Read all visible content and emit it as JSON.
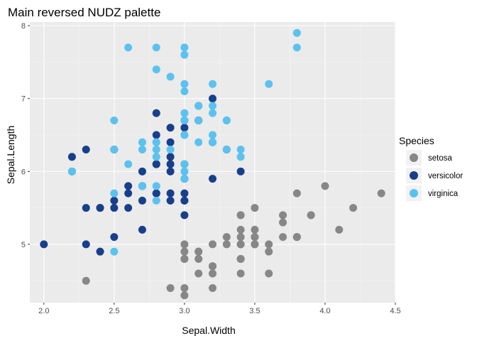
{
  "chart_data": {
    "type": "scatter",
    "title": "Main reversed NUDZ palette",
    "xlabel": "Sepal.Width",
    "ylabel": "Sepal.Length",
    "xlim": [
      1.9,
      4.5
    ],
    "ylim": [
      4.2,
      8.05
    ],
    "xticks": [
      "2.0",
      "2.5",
      "3.0",
      "3.5",
      "4.0",
      "4.5"
    ],
    "yticks": [
      "5",
      "6",
      "7",
      "8"
    ],
    "grid": true,
    "background": "#ebebeb",
    "legend": {
      "title": "Species",
      "position": "right"
    },
    "series": [
      {
        "name": "setosa",
        "color": "#878787",
        "points": [
          [
            3.5,
            5.1
          ],
          [
            3.0,
            4.9
          ],
          [
            3.2,
            4.7
          ],
          [
            3.1,
            4.6
          ],
          [
            3.6,
            5.0
          ],
          [
            3.9,
            5.4
          ],
          [
            3.4,
            4.6
          ],
          [
            3.4,
            5.0
          ],
          [
            2.9,
            4.4
          ],
          [
            3.1,
            4.9
          ],
          [
            3.7,
            5.4
          ],
          [
            3.4,
            4.8
          ],
          [
            3.0,
            4.8
          ],
          [
            3.0,
            4.3
          ],
          [
            4.0,
            5.8
          ],
          [
            4.4,
            5.7
          ],
          [
            3.9,
            5.4
          ],
          [
            3.5,
            5.1
          ],
          [
            3.8,
            5.7
          ],
          [
            3.8,
            5.1
          ],
          [
            3.4,
            5.4
          ],
          [
            3.7,
            5.1
          ],
          [
            3.6,
            4.6
          ],
          [
            3.3,
            5.1
          ],
          [
            3.4,
            4.8
          ],
          [
            3.0,
            5.0
          ],
          [
            3.4,
            5.0
          ],
          [
            3.5,
            5.2
          ],
          [
            3.4,
            5.2
          ],
          [
            3.2,
            4.7
          ],
          [
            3.1,
            4.8
          ],
          [
            3.4,
            5.4
          ],
          [
            4.1,
            5.2
          ],
          [
            4.2,
            5.5
          ],
          [
            3.1,
            4.9
          ],
          [
            3.2,
            5.0
          ],
          [
            3.5,
            5.5
          ],
          [
            3.6,
            4.9
          ],
          [
            3.0,
            4.4
          ],
          [
            3.4,
            5.1
          ],
          [
            3.5,
            5.0
          ],
          [
            2.3,
            4.5
          ],
          [
            3.2,
            4.4
          ],
          [
            3.5,
            5.0
          ],
          [
            3.8,
            5.1
          ],
          [
            3.0,
            4.8
          ],
          [
            3.8,
            5.1
          ],
          [
            3.2,
            4.6
          ],
          [
            3.7,
            5.3
          ],
          [
            3.3,
            5.0
          ]
        ]
      },
      {
        "name": "versicolor",
        "color": "#173f8b",
        "points": [
          [
            3.2,
            7.0
          ],
          [
            3.2,
            6.4
          ],
          [
            3.1,
            6.9
          ],
          [
            2.3,
            5.5
          ],
          [
            2.8,
            6.5
          ],
          [
            2.8,
            5.7
          ],
          [
            3.3,
            6.3
          ],
          [
            2.4,
            4.9
          ],
          [
            2.9,
            6.6
          ],
          [
            2.7,
            5.2
          ],
          [
            2.0,
            5.0
          ],
          [
            3.0,
            5.9
          ],
          [
            2.2,
            6.0
          ],
          [
            2.9,
            6.1
          ],
          [
            2.9,
            5.6
          ],
          [
            3.1,
            6.7
          ],
          [
            3.0,
            5.6
          ],
          [
            2.7,
            5.8
          ],
          [
            2.2,
            6.2
          ],
          [
            2.5,
            5.6
          ],
          [
            3.2,
            5.9
          ],
          [
            2.8,
            6.1
          ],
          [
            2.5,
            6.3
          ],
          [
            2.8,
            6.1
          ],
          [
            2.9,
            6.4
          ],
          [
            3.0,
            6.6
          ],
          [
            2.8,
            6.8
          ],
          [
            3.0,
            6.7
          ],
          [
            2.9,
            6.0
          ],
          [
            2.6,
            5.7
          ],
          [
            2.4,
            5.5
          ],
          [
            2.4,
            5.5
          ],
          [
            2.7,
            5.8
          ],
          [
            2.7,
            6.0
          ],
          [
            3.0,
            5.4
          ],
          [
            3.4,
            6.0
          ],
          [
            3.1,
            6.7
          ],
          [
            2.3,
            6.3
          ],
          [
            3.0,
            5.6
          ],
          [
            2.5,
            5.5
          ],
          [
            2.6,
            5.5
          ],
          [
            3.0,
            6.1
          ],
          [
            2.6,
            5.8
          ],
          [
            2.3,
            5.0
          ],
          [
            2.7,
            5.6
          ],
          [
            3.0,
            5.7
          ],
          [
            2.9,
            5.7
          ],
          [
            2.9,
            6.2
          ],
          [
            2.5,
            5.1
          ],
          [
            2.8,
            5.7
          ]
        ]
      },
      {
        "name": "virginica",
        "color": "#5bc2f0",
        "points": [
          [
            3.3,
            6.3
          ],
          [
            2.7,
            5.8
          ],
          [
            3.0,
            7.1
          ],
          [
            2.9,
            6.3
          ],
          [
            3.0,
            6.5
          ],
          [
            3.0,
            7.6
          ],
          [
            2.5,
            4.9
          ],
          [
            2.9,
            7.3
          ],
          [
            2.5,
            6.7
          ],
          [
            3.6,
            7.2
          ],
          [
            3.2,
            6.5
          ],
          [
            2.7,
            6.4
          ],
          [
            3.0,
            6.8
          ],
          [
            2.5,
            5.7
          ],
          [
            2.8,
            5.8
          ],
          [
            3.2,
            6.4
          ],
          [
            3.0,
            6.5
          ],
          [
            3.8,
            7.7
          ],
          [
            2.6,
            7.7
          ],
          [
            2.2,
            6.0
          ],
          [
            3.2,
            6.9
          ],
          [
            2.8,
            5.6
          ],
          [
            2.8,
            7.7
          ],
          [
            2.7,
            6.3
          ],
          [
            3.3,
            6.7
          ],
          [
            3.2,
            7.2
          ],
          [
            2.8,
            6.2
          ],
          [
            3.0,
            6.1
          ],
          [
            2.8,
            6.4
          ],
          [
            3.0,
            7.2
          ],
          [
            2.8,
            7.4
          ],
          [
            3.8,
            7.9
          ],
          [
            2.8,
            6.4
          ],
          [
            2.8,
            6.3
          ],
          [
            2.6,
            6.1
          ],
          [
            3.0,
            7.7
          ],
          [
            3.4,
            6.3
          ],
          [
            3.1,
            6.4
          ],
          [
            3.0,
            6.0
          ],
          [
            3.1,
            6.9
          ],
          [
            3.1,
            6.7
          ],
          [
            3.1,
            6.9
          ],
          [
            2.7,
            5.8
          ],
          [
            3.2,
            6.8
          ],
          [
            3.3,
            6.7
          ],
          [
            3.0,
            6.7
          ],
          [
            2.5,
            6.3
          ],
          [
            3.0,
            6.5
          ],
          [
            3.4,
            6.2
          ],
          [
            3.0,
            5.9
          ]
        ]
      }
    ]
  }
}
